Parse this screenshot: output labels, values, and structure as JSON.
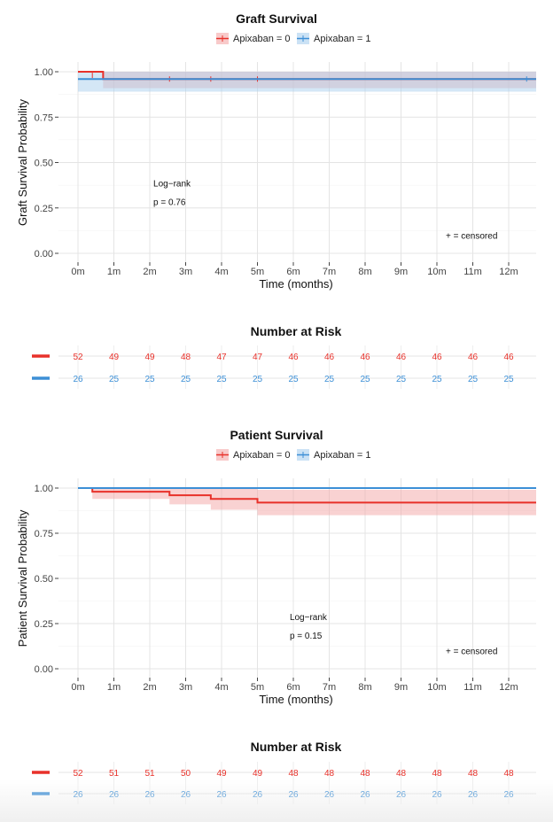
{
  "colors": {
    "group0": "#e8312a",
    "group1": "#3c8fd6",
    "band0": "#f4a6a6",
    "band1": "#a9cfee",
    "grid": "#e4e4e4"
  },
  "chart_data": [
    {
      "type": "line",
      "title": "Graft Survival",
      "legend": [
        "Apixaban = 0",
        "Apixaban = 1"
      ],
      "legend_position": "top",
      "xlabel": "Time (months)",
      "ylabel": "Graft Survival Probability",
      "x_ticks": [
        "0m",
        "1m",
        "2m",
        "3m",
        "4m",
        "5m",
        "6m",
        "7m",
        "8m",
        "9m",
        "10m",
        "11m",
        "12m"
      ],
      "y_ticks": [
        "0.00",
        "0.25",
        "0.50",
        "0.75",
        "1.00"
      ],
      "xlim": [
        -0.6,
        12.8
      ],
      "ylim": [
        -0.05,
        1.05
      ],
      "grid": true,
      "annotation": {
        "line1": "Log−rank",
        "line2": "p = 0.76",
        "x": 2.1,
        "y": 0.3
      },
      "censor_note": "+ = censored",
      "series": [
        {
          "name": "Apixaban = 0",
          "steps": [
            [
              0,
              1.0
            ],
            [
              0.7,
              0.96
            ],
            [
              12.8,
              0.96
            ]
          ],
          "ci": [
            [
              0,
              1.0,
              1.0
            ],
            [
              0.7,
              0.91,
              1.0
            ],
            [
              12.8,
              0.91,
              1.0
            ]
          ],
          "censored": [
            [
              0.4,
              0.98
            ],
            [
              2.55,
              0.96
            ],
            [
              3.7,
              0.96
            ],
            [
              5.0,
              0.96
            ]
          ]
        },
        {
          "name": "Apixaban = 1",
          "steps": [
            [
              0,
              0.96
            ],
            [
              12.8,
              0.96
            ]
          ],
          "ci": [
            [
              0,
              0.89,
              1.0
            ],
            [
              12.8,
              0.89,
              1.0
            ]
          ],
          "censored": [
            [
              12.5,
              0.96
            ]
          ]
        }
      ]
    },
    {
      "type": "table",
      "title": "Number at Risk",
      "rows": [
        {
          "name": "Apixaban = 0",
          "values": [
            "52",
            "49",
            "49",
            "48",
            "47",
            "47",
            "46",
            "46",
            "46",
            "46",
            "46",
            "46",
            "46"
          ]
        },
        {
          "name": "Apixaban = 1",
          "values": [
            "26",
            "25",
            "25",
            "25",
            "25",
            "25",
            "25",
            "25",
            "25",
            "25",
            "25",
            "25",
            "25"
          ]
        }
      ]
    },
    {
      "type": "line",
      "title": "Patient Survival",
      "legend": [
        "Apixaban = 0",
        "Apixaban = 1"
      ],
      "legend_position": "top",
      "xlabel": "Time (months)",
      "ylabel": "Patient Survival Probability",
      "x_ticks": [
        "0m",
        "1m",
        "2m",
        "3m",
        "4m",
        "5m",
        "6m",
        "7m",
        "8m",
        "9m",
        "10m",
        "11m",
        "12m"
      ],
      "y_ticks": [
        "0.00",
        "0.25",
        "0.50",
        "0.75",
        "1.00"
      ],
      "xlim": [
        -0.6,
        12.8
      ],
      "ylim": [
        -0.05,
        1.05
      ],
      "grid": true,
      "annotation": {
        "line1": "Log−rank",
        "line2": "p = 0.15",
        "x": 5.9,
        "y": 0.2
      },
      "censor_note": "+ = censored",
      "series": [
        {
          "name": "Apixaban = 0",
          "steps": [
            [
              0,
              1.0
            ],
            [
              0.4,
              0.98
            ],
            [
              2.55,
              0.96
            ],
            [
              3.7,
              0.94
            ],
            [
              5.0,
              0.92
            ],
            [
              12.8,
              0.92
            ]
          ],
          "ci": [
            [
              0,
              1.0,
              1.0
            ],
            [
              0.4,
              0.94,
              1.0
            ],
            [
              2.55,
              0.91,
              1.0
            ],
            [
              3.7,
              0.88,
              1.0
            ],
            [
              5.0,
              0.85,
              0.99
            ],
            [
              12.8,
              0.85,
              0.99
            ]
          ],
          "censored": []
        },
        {
          "name": "Apixaban = 1",
          "steps": [
            [
              0,
              1.0
            ],
            [
              12.8,
              1.0
            ]
          ],
          "ci": [
            [
              0,
              1.0,
              1.0
            ],
            [
              12.8,
              1.0,
              1.0
            ]
          ],
          "censored": []
        }
      ]
    },
    {
      "type": "table",
      "title": "Number at Risk",
      "rows": [
        {
          "name": "Apixaban = 0",
          "values": [
            "52",
            "51",
            "51",
            "50",
            "49",
            "49",
            "48",
            "48",
            "48",
            "48",
            "48",
            "48",
            "48"
          ]
        },
        {
          "name": "Apixaban = 1",
          "values": [
            "26",
            "26",
            "26",
            "26",
            "26",
            "26",
            "26",
            "26",
            "26",
            "26",
            "26",
            "26",
            "26"
          ]
        }
      ]
    }
  ]
}
